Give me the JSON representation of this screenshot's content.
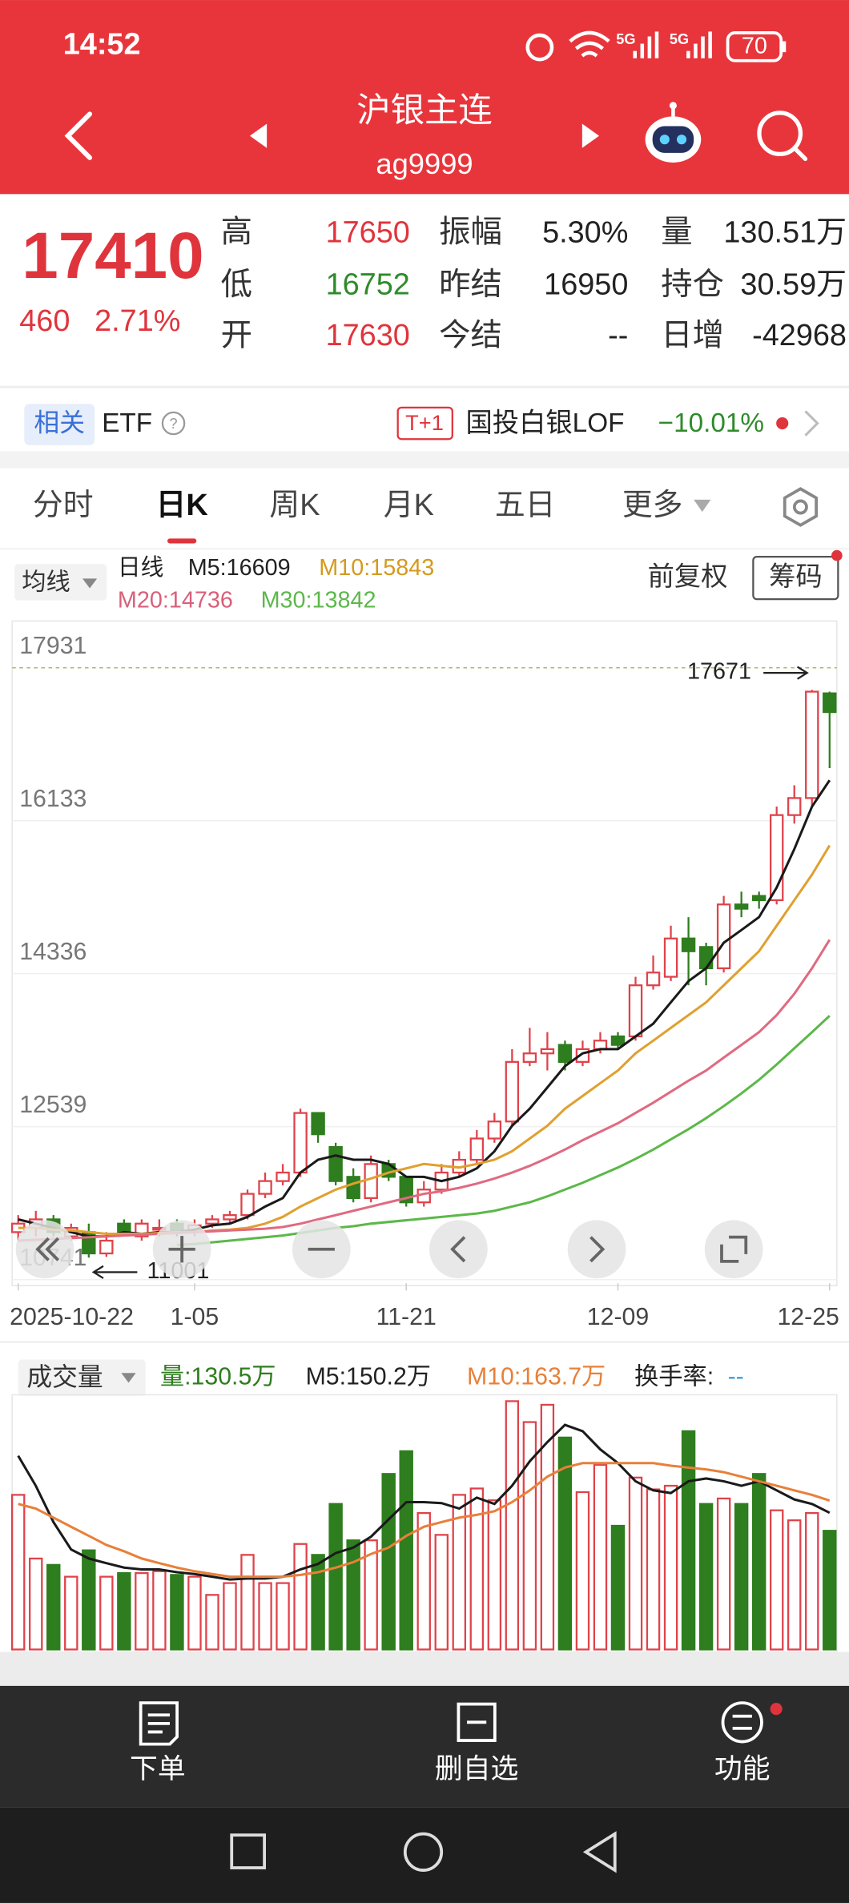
{
  "status": {
    "time": "14:52",
    "network": "5G",
    "battery": "70"
  },
  "header": {
    "title": "沪银主连",
    "code": "ag9999"
  },
  "quote": {
    "price": "17410",
    "change": "460",
    "change_pct": "2.71%",
    "fields": [
      {
        "label": "高",
        "value": "17650",
        "color": "#e0343c"
      },
      {
        "label": "低",
        "value": "16752",
        "color": "#2e8b2a"
      },
      {
        "label": "开",
        "value": "17630",
        "color": "#e0343c"
      },
      {
        "label": "振幅",
        "value": "5.30%",
        "color": "#222"
      },
      {
        "label": "昨结",
        "value": "16950",
        "color": "#222"
      },
      {
        "label": "今结",
        "value": "--",
        "color": "#222"
      },
      {
        "label": "量",
        "value": "130.51万",
        "color": "#222"
      },
      {
        "label": "持仓",
        "value": "30.59万",
        "color": "#222"
      },
      {
        "label": "日增",
        "value": "-42968",
        "color": "#222"
      }
    ]
  },
  "related": {
    "tag": "相关",
    "etf": "ETF",
    "t1": "T+1",
    "fund": "国投白银LOF",
    "fund_change": "−10.01%"
  },
  "tabs": [
    "分时",
    "日K",
    "周K",
    "月K",
    "五日",
    "更多"
  ],
  "indicator": {
    "ma_button": "均线",
    "period": "日线",
    "ma_labels": [
      "M5:16609",
      "M10:15843",
      "M20:14736",
      "M30:13842"
    ],
    "adjust": "前复权",
    "chips": "筹码"
  },
  "chart_data": {
    "type": "candlestick",
    "up_color": "#e0424a",
    "down_color": "#2e7d1e",
    "categories": [
      "2025-10-22",
      null,
      null,
      null,
      null,
      null,
      null,
      null,
      null,
      null,
      "1-05",
      null,
      null,
      null,
      null,
      null,
      null,
      null,
      null,
      null,
      null,
      null,
      "11-21",
      null,
      null,
      null,
      null,
      null,
      null,
      null,
      null,
      null,
      null,
      null,
      "12-09",
      null,
      null,
      null,
      null,
      null,
      null,
      null,
      null,
      null,
      null,
      null,
      "12-25"
    ],
    "open": [
      11300,
      11350,
      11450,
      11250,
      11300,
      11050,
      11400,
      11250,
      11350,
      11400,
      11300,
      11400,
      11450,
      11500,
      11750,
      11900,
      12000,
      12700,
      12300,
      11950,
      11700,
      12100,
      11950,
      11650,
      11800,
      12000,
      12150,
      12400,
      12600,
      13300,
      13400,
      13500,
      13300,
      13450,
      13600,
      13600,
      14200,
      14300,
      14750,
      14650,
      14400,
      15150,
      15250,
      15200,
      16200,
      16400,
      17630
    ],
    "high": [
      11500,
      11550,
      11500,
      11400,
      11400,
      11300,
      11450,
      11450,
      11450,
      11450,
      11450,
      11500,
      11550,
      11800,
      12000,
      12100,
      12750,
      12700,
      12350,
      12050,
      12200,
      12150,
      11950,
      11900,
      12100,
      12250,
      12500,
      12700,
      13450,
      13700,
      13650,
      13550,
      13550,
      13650,
      13650,
      14300,
      14550,
      14900,
      15000,
      14700,
      15250,
      15300,
      15300,
      16300,
      16550,
      17671,
      17650
    ],
    "low": [
      11200,
      11250,
      11250,
      11200,
      11001,
      11010,
      11250,
      11200,
      11250,
      11250,
      11250,
      11350,
      11400,
      11450,
      11700,
      11850,
      11950,
      12350,
      11850,
      11650,
      11650,
      11900,
      11600,
      11600,
      11750,
      11950,
      12100,
      12350,
      12550,
      13250,
      13200,
      13200,
      13250,
      13400,
      13450,
      13550,
      14150,
      14250,
      14200,
      14200,
      14350,
      15000,
      15100,
      15150,
      16100,
      16300,
      16752
    ],
    "close": [
      11400,
      11450,
      11300,
      11350,
      11050,
      11200,
      11300,
      11400,
      11350,
      11300,
      11380,
      11450,
      11500,
      11750,
      11900,
      12000,
      12700,
      12450,
      11900,
      11700,
      12100,
      11950,
      11650,
      11800,
      12000,
      12150,
      12400,
      12600,
      13300,
      13400,
      13450,
      13300,
      13450,
      13550,
      13500,
      14200,
      14350,
      14750,
      14600,
      14400,
      15150,
      15100,
      15200,
      16200,
      16400,
      17650,
      17410
    ],
    "ylim": [
      10700,
      18480
    ],
    "yticks": [
      17931,
      16133,
      14336,
      12539,
      10741
    ],
    "series": [
      {
        "color": "#1a1a1a",
        "values": [
          11450,
          11400,
          11350,
          11300,
          11250,
          11250,
          11300,
          11280,
          11300,
          11300,
          11330,
          11380,
          11400,
          11480,
          11600,
          11700,
          12000,
          12150,
          12200,
          12150,
          12150,
          12100,
          11950,
          11950,
          11900,
          11950,
          12050,
          12250,
          12550,
          12750,
          13000,
          13250,
          13400,
          13450,
          13450,
          13600,
          13750,
          14000,
          14250,
          14400,
          14700,
          14850,
          15000,
          15350,
          15800,
          16300,
          16609
        ]
      },
      {
        "color": "#e0a030",
        "values": [
          11350,
          11350,
          11330,
          11320,
          11300,
          11280,
          11280,
          11280,
          11290,
          11300,
          11300,
          11320,
          11330,
          11350,
          11400,
          11480,
          11600,
          11700,
          11800,
          11870,
          11930,
          12000,
          12050,
          12100,
          12080,
          12060,
          12100,
          12150,
          12250,
          12400,
          12550,
          12750,
          12900,
          13050,
          13200,
          13400,
          13550,
          13700,
          13850,
          14000,
          14200,
          14400,
          14600,
          14900,
          15200,
          15500,
          15843
        ]
      },
      {
        "color": "#e06a80",
        "values": [
          11200,
          11210,
          11220,
          11230,
          11240,
          11250,
          11260,
          11270,
          11280,
          11290,
          11300,
          11310,
          11320,
          11330,
          11340,
          11360,
          11400,
          11450,
          11500,
          11550,
          11600,
          11650,
          11700,
          11750,
          11780,
          11820,
          11870,
          11930,
          12000,
          12080,
          12170,
          12270,
          12380,
          12480,
          12580,
          12700,
          12820,
          12950,
          13080,
          13200,
          13350,
          13500,
          13650,
          13850,
          14100,
          14400,
          14736
        ]
      },
      {
        "color": "#5cb84a",
        "values": [
          null,
          null,
          null,
          null,
          null,
          null,
          null,
          null,
          null,
          11150,
          11160,
          11180,
          11200,
          11220,
          11240,
          11260,
          11290,
          11320,
          11350,
          11370,
          11400,
          11420,
          11440,
          11460,
          11480,
          11500,
          11520,
          11550,
          11600,
          11650,
          11720,
          11800,
          11880,
          11970,
          12060,
          12160,
          12270,
          12390,
          12510,
          12640,
          12780,
          12930,
          13090,
          13270,
          13460,
          13650,
          13842
        ]
      }
    ]
  },
  "volume": {
    "type": "bar",
    "header": "成交量",
    "labels": [
      "量:130.5万",
      "M5:150.2万",
      "M10:163.7万",
      "换手率:",
      "--"
    ],
    "values": [
      170,
      100,
      93,
      80,
      109,
      80,
      84,
      84,
      86,
      82,
      80,
      60,
      73,
      104,
      73,
      73,
      116,
      104,
      160,
      120,
      120,
      193,
      218,
      150,
      126,
      170,
      177,
      164,
      273,
      250,
      269,
      233,
      173,
      203,
      136,
      189,
      176,
      180,
      240,
      160,
      166,
      160,
      193,
      153,
      142,
      150,
      130.5
    ],
    "ylim": [
      0,
      280
    ],
    "series": [
      {
        "color": "#1a1a1a",
        "values": [
          213,
          180,
          140,
          110,
          100,
          95,
          90,
          88,
          88,
          85,
          83,
          80,
          77,
          78,
          78,
          80,
          88,
          94,
          106,
          112,
          124,
          143,
          162,
          162,
          161,
          155,
          167,
          160,
          180,
          207,
          228,
          247,
          240,
          220,
          205,
          185,
          175,
          172,
          185,
          188,
          185,
          180,
          185,
          175,
          165,
          160,
          150.2
        ]
      },
      {
        "color": "#e8803a",
        "values": [
          160,
          155,
          145,
          135,
          125,
          115,
          108,
          100,
          95,
          90,
          86,
          83,
          80,
          80,
          80,
          80,
          82,
          85,
          90,
          96,
          105,
          112,
          125,
          135,
          140,
          145,
          148,
          152,
          162,
          175,
          190,
          200,
          205,
          205,
          205,
          205,
          205,
          202,
          200,
          198,
          195,
          190,
          185,
          180,
          175,
          170,
          163.7
        ]
      }
    ]
  },
  "nav": [
    "下单",
    "删自选",
    "功能"
  ]
}
